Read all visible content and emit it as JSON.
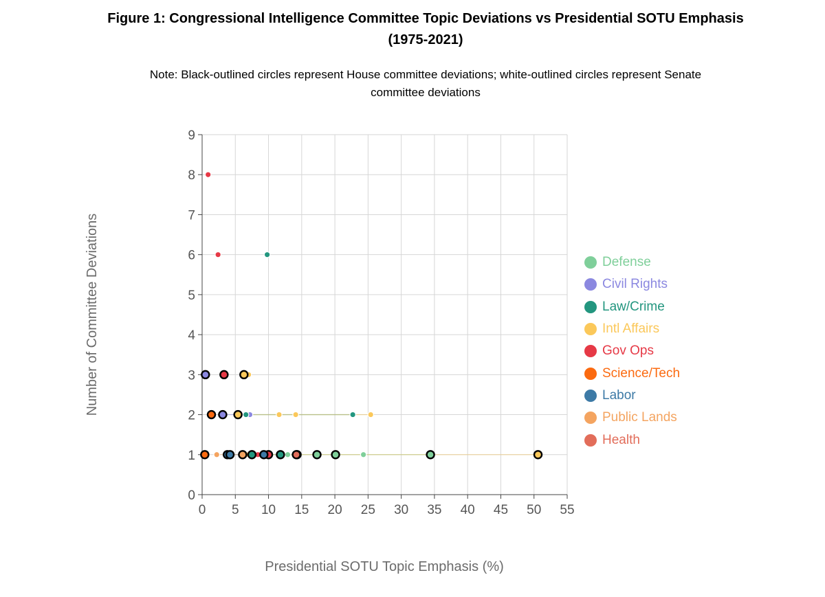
{
  "header": {
    "title_line1": "Figure 1: Congressional Intelligence Committee Topic Deviations vs Presidential SOTU Emphasis",
    "title_line2": "(1975-2021)",
    "note_line1": "Note: Black-outlined circles represent House committee deviations; white-outlined circles represent Senate",
    "note_line2": "committee deviations"
  },
  "chart_data": {
    "type": "scatter",
    "xlabel": "Presidential SOTU Topic Emphasis (%)",
    "ylabel": "Number of Committee Deviations",
    "xlim": [
      0,
      55
    ],
    "ylim": [
      0,
      9
    ],
    "x_ticks": [
      0,
      5,
      10,
      15,
      20,
      25,
      30,
      35,
      40,
      45,
      50,
      55
    ],
    "y_ticks": [
      0,
      1,
      2,
      3,
      4,
      5,
      6,
      7,
      8,
      9
    ],
    "grid": true,
    "legend_position": "right",
    "outline_colors": {
      "House": "#000000",
      "Senate": "#ffffff"
    },
    "series": [
      {
        "name": "Defense",
        "color": "#7fcf9a",
        "points": [
          {
            "x": 20.0,
            "y": 1,
            "chamber": "Senate"
          },
          {
            "x": 24.3,
            "y": 1,
            "chamber": "Senate"
          },
          {
            "x": 12.9,
            "y": 1,
            "chamber": "Senate"
          },
          {
            "x": 14.3,
            "y": 1,
            "chamber": "House"
          },
          {
            "x": 17.3,
            "y": 1,
            "chamber": "House"
          },
          {
            "x": 34.4,
            "y": 1,
            "chamber": "House"
          },
          {
            "x": 20.1,
            "y": 1,
            "chamber": "House"
          }
        ]
      },
      {
        "name": "Civil Rights",
        "color": "#8b88e0",
        "points": [
          {
            "x": 0.5,
            "y": 3,
            "chamber": "House"
          },
          {
            "x": 3.1,
            "y": 2,
            "chamber": "House"
          },
          {
            "x": 7.2,
            "y": 2,
            "chamber": "Senate"
          }
        ]
      },
      {
        "name": "Law/Crime",
        "color": "#23967f",
        "points": [
          {
            "x": 9.8,
            "y": 6,
            "chamber": "Senate"
          },
          {
            "x": 6.6,
            "y": 2,
            "chamber": "Senate"
          },
          {
            "x": 22.7,
            "y": 2,
            "chamber": "Senate"
          },
          {
            "x": 7.5,
            "y": 1,
            "chamber": "House"
          },
          {
            "x": 11.8,
            "y": 1,
            "chamber": "House"
          }
        ]
      },
      {
        "name": "Intl Affairs",
        "color": "#fbc85a",
        "points": [
          {
            "x": 6.3,
            "y": 3,
            "chamber": "House"
          },
          {
            "x": 7.0,
            "y": 3,
            "chamber": "Senate"
          },
          {
            "x": 5.4,
            "y": 2,
            "chamber": "House"
          },
          {
            "x": 11.6,
            "y": 2,
            "chamber": "Senate"
          },
          {
            "x": 14.1,
            "y": 2,
            "chamber": "Senate"
          },
          {
            "x": 25.4,
            "y": 2,
            "chamber": "Senate"
          },
          {
            "x": 6.6,
            "y": 1,
            "chamber": "Senate"
          },
          {
            "x": 50.6,
            "y": 1,
            "chamber": "House"
          }
        ]
      },
      {
        "name": "Gov Ops",
        "color": "#e63946",
        "points": [
          {
            "x": 0.9,
            "y": 8,
            "chamber": "Senate"
          },
          {
            "x": 2.4,
            "y": 6,
            "chamber": "Senate"
          },
          {
            "x": 3.3,
            "y": 3,
            "chamber": "House"
          },
          {
            "x": 8.4,
            "y": 1,
            "chamber": "Senate"
          },
          {
            "x": 10.0,
            "y": 1,
            "chamber": "House"
          }
        ]
      },
      {
        "name": "Science/Tech",
        "color": "#fb6a10",
        "points": [
          {
            "x": 1.4,
            "y": 2,
            "chamber": "House"
          },
          {
            "x": 0.4,
            "y": 1,
            "chamber": "House"
          }
        ]
      },
      {
        "name": "Labor",
        "color": "#3d7aa6",
        "points": [
          {
            "x": 3.8,
            "y": 1,
            "chamber": "House"
          },
          {
            "x": 4.2,
            "y": 1,
            "chamber": "House"
          },
          {
            "x": 9.3,
            "y": 1,
            "chamber": "House"
          }
        ]
      },
      {
        "name": "Public Lands",
        "color": "#f4a460",
        "points": [
          {
            "x": 2.2,
            "y": 1,
            "chamber": "Senate"
          },
          {
            "x": 6.1,
            "y": 1,
            "chamber": "House"
          }
        ]
      },
      {
        "name": "Health",
        "color": "#e26d5a",
        "points": [
          {
            "x": 14.2,
            "y": 1,
            "chamber": "House"
          }
        ]
      }
    ]
  }
}
